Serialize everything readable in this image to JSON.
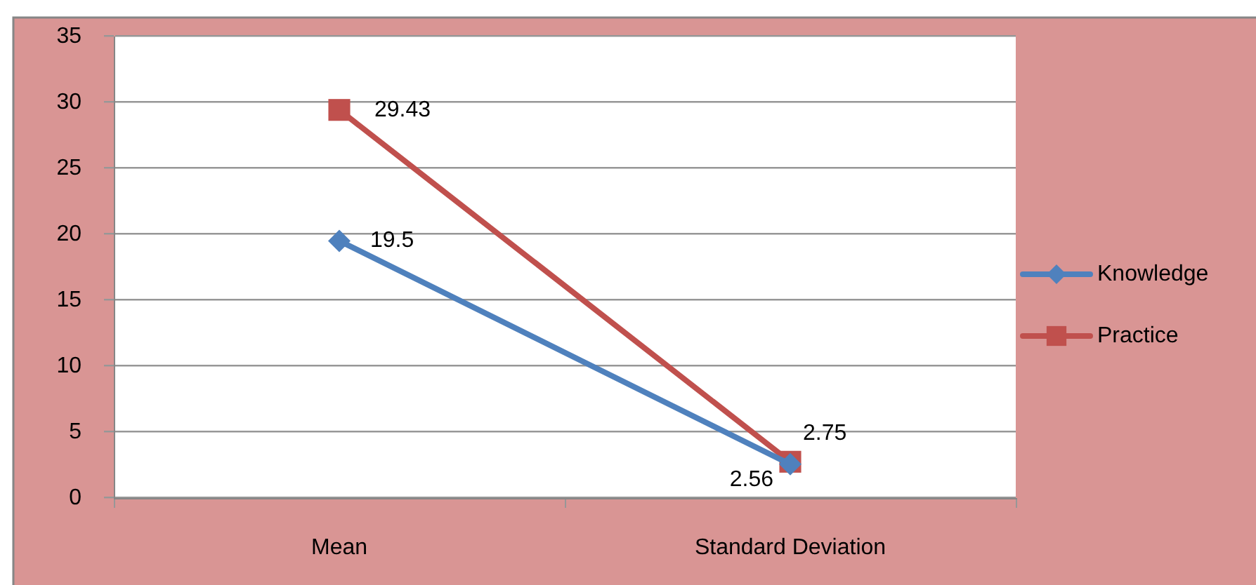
{
  "chart_data": {
    "type": "line",
    "categories": [
      "Mean",
      "Standard Deviation"
    ],
    "series": [
      {
        "name": "Knowledge",
        "color": "#4f81bd",
        "values": [
          19.5,
          2.56
        ],
        "marker": "diamond"
      },
      {
        "name": "Practice",
        "color": "#c0504d",
        "values": [
          29.43,
          2.75
        ],
        "marker": "square"
      }
    ],
    "ylim": [
      0,
      35
    ],
    "yticks": [
      0,
      5,
      10,
      15,
      20,
      25,
      30,
      35
    ],
    "grid": "y",
    "legend": "right",
    "data_labels": true,
    "line_style": "solid"
  }
}
